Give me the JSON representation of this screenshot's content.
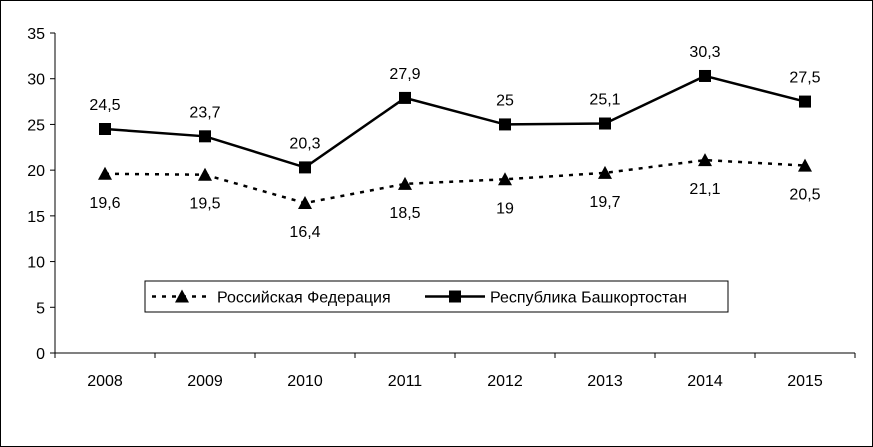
{
  "chart_data": {
    "type": "line",
    "categories": [
      "2008",
      "2009",
      "2010",
      "2011",
      "2012",
      "2013",
      "2014",
      "2015"
    ],
    "ylim": [
      0,
      35
    ],
    "yticks": [
      0,
      5,
      10,
      15,
      20,
      25,
      30,
      35
    ],
    "grid": false,
    "legend_position": "bottom-center",
    "series": [
      {
        "name": "Российская Федерация",
        "values": [
          19.6,
          19.5,
          16.4,
          18.5,
          19,
          19.7,
          21.1,
          20.5
        ],
        "labels": [
          "19,6",
          "19,5",
          "16,4",
          "18,5",
          "19",
          "19,7",
          "21,1",
          "20,5"
        ],
        "line_style": "dashed",
        "marker": "triangle",
        "label_position": "below",
        "color": "#000000"
      },
      {
        "name": "Республика Башкортостан",
        "values": [
          24.5,
          23.7,
          20.3,
          27.9,
          25,
          25.1,
          30.3,
          27.5
        ],
        "labels": [
          "24,5",
          "23,7",
          "20,3",
          "27,9",
          "25",
          "25,1",
          "30,3",
          "27,5"
        ],
        "line_style": "solid",
        "marker": "square",
        "label_position": "above",
        "color": "#000000"
      }
    ]
  }
}
